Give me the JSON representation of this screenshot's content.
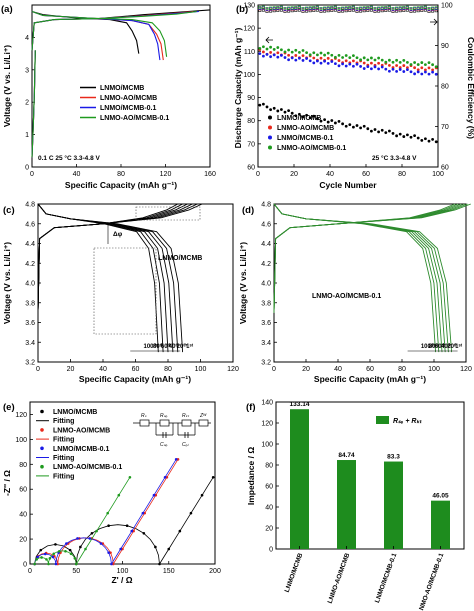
{
  "figure": {
    "panels": {
      "a": {
        "letter": "(a)",
        "xlabel": "Specific Capacity (mAh g⁻¹)",
        "ylabel": "Voltage (V vs. Li/Li⁺)",
        "xticks": [
          "0",
          "40",
          "80",
          "120",
          "160"
        ],
        "yticks": [
          "0",
          "1",
          "2",
          "3",
          "4"
        ],
        "condition": "0.1 C  25 °C  3.3-4.8 V",
        "legend": [
          "LNMO/MCMB",
          "LNMO-AO/MCMB",
          "LNMO/MCMB-0.1",
          "LNMO-AO/MCMB-0.1"
        ]
      },
      "b": {
        "letter": "(b)",
        "xlabel": "Cycle Number",
        "ylabel": "Discharge Capacity (mAh g⁻¹)",
        "ylabel2": "Coulombic Efficiency (%)",
        "xticks": [
          "0",
          "20",
          "40",
          "60",
          "80",
          "100"
        ],
        "yticks": [
          "60",
          "70",
          "80",
          "90",
          "100",
          "110",
          "120",
          "130"
        ],
        "yticks2": [
          "60",
          "70",
          "80",
          "90",
          "100"
        ],
        "condition": "25 °C  3.3-4.8 V",
        "legend": [
          "LNMO/MCMB",
          "LNMO-AO/MCMB",
          "LNMO/MCMB-0.1",
          "LNMO-AO/MCMB-0.1"
        ]
      },
      "c": {
        "letter": "(c)",
        "xlabel": "Specific Capacity (mAh g⁻¹)",
        "ylabel": "Voltage (V vs. Li/Li⁺)",
        "xticks": [
          "0",
          "20",
          "40",
          "60",
          "80",
          "100",
          "120"
        ],
        "yticks": [
          "3.2",
          "3.4",
          "3.6",
          "3.8",
          "4.0",
          "4.2",
          "4.4",
          "4.6",
          "4.8"
        ],
        "title": "LNMO/MCMB",
        "delta": "Δφ",
        "cycle_labels": [
          "100ᵗʰ",
          "80ᵗʰ",
          "60ᵗʰ",
          "40ᵗʰ",
          "20ᵗʰ",
          "1ˢᵗ"
        ]
      },
      "d": {
        "letter": "(d)",
        "xlabel": "Specific Capacity (mAh g⁻¹)",
        "ylabel": "Voltage (V vs. Li/Li⁺)",
        "xticks": [
          "0",
          "20",
          "40",
          "60",
          "80",
          "100",
          "120"
        ],
        "yticks": [
          "3.2",
          "3.4",
          "3.6",
          "3.8",
          "4.0",
          "4.2",
          "4.4",
          "4.6",
          "4.8"
        ],
        "title": "LNMO-AO/MCMB-0.1",
        "cycle_labels": [
          "100ᵗʰ",
          "80ᵗʰ",
          "60ᵗʰ",
          "40ᵗʰ",
          "20ᵗʰ",
          "1ˢᵗ"
        ]
      },
      "e": {
        "letter": "(e)",
        "xlabel": "Z' / Ω",
        "ylabel": "-Z'' / Ω",
        "xticks": [
          "0",
          "50",
          "100",
          "150",
          "200"
        ],
        "yticks": [
          "0",
          "20",
          "40",
          "60",
          "80",
          "100",
          "120"
        ],
        "legend": [
          "LNMO/MCMB",
          "Fitting",
          "LNMO-AO/MCMB",
          "Fitting",
          "LNMO/MCMB-0.1",
          "Fitting",
          "LNMO-AO/MCMB-0.1",
          "Fitting"
        ],
        "circuit": {
          "rs": "Rₛ",
          "rsf": "Rₛₑ",
          "rct": "Rₖₜ",
          "zw": "Zᵂ",
          "csf": "Cₛₑ",
          "cdl": "Cₑₗ"
        }
      },
      "f": {
        "letter": "(f)",
        "ylabel": "Impedance / Ω",
        "yticks": [
          "0",
          "20",
          "40",
          "60",
          "80",
          "100",
          "120",
          "140"
        ],
        "legend": "Rₛₑ + Rₖₜ"
      }
    }
  },
  "chart_data": [
    {
      "panel": "a",
      "type": "line",
      "xlim": [
        0,
        160
      ],
      "ylim": [
        0,
        5
      ],
      "series": [
        {
          "name": "LNMO/MCMB",
          "color": "#000000",
          "charge": [
            [
              0,
              3.6
            ],
            [
              2,
              4.45
            ],
            [
              20,
              4.55
            ],
            [
              60,
              4.58
            ],
            [
              100,
              4.7
            ],
            [
              140,
              4.8
            ],
            [
              160,
              4.85
            ]
          ],
          "discharge": [
            [
              0,
              4.8
            ],
            [
              10,
              4.7
            ],
            [
              40,
              4.6
            ],
            [
              70,
              4.55
            ],
            [
              85,
              4.45
            ],
            [
              90,
              4.2
            ],
            [
              94,
              3.9
            ],
            [
              96,
              3.5
            ]
          ]
        },
        {
          "name": "LNMO-AO/MCMB",
          "color": "#e8291c",
          "charge": [
            [
              0,
              3.6
            ],
            [
              2,
              4.45
            ],
            [
              20,
              4.55
            ],
            [
              60,
              4.58
            ],
            [
              100,
              4.67
            ],
            [
              130,
              4.75
            ],
            [
              145,
              4.8
            ]
          ],
          "discharge": [
            [
              0,
              4.8
            ],
            [
              10,
              4.68
            ],
            [
              50,
              4.6
            ],
            [
              90,
              4.52
            ],
            [
              105,
              4.4
            ],
            [
              112,
              4.1
            ],
            [
              116,
              3.8
            ],
            [
              118,
              3.3
            ]
          ]
        },
        {
          "name": "LNMO/MCMB-0.1",
          "color": "#1a1ae6",
          "charge": [
            [
              0,
              3.6
            ],
            [
              2,
              4.45
            ],
            [
              20,
              4.55
            ],
            [
              60,
              4.58
            ],
            [
              100,
              4.66
            ],
            [
              130,
              4.74
            ],
            [
              150,
              4.8
            ]
          ],
          "discharge": [
            [
              0,
              4.8
            ],
            [
              10,
              4.68
            ],
            [
              50,
              4.6
            ],
            [
              90,
              4.52
            ],
            [
              105,
              4.4
            ],
            [
              110,
              4.1
            ],
            [
              113,
              3.8
            ],
            [
              115,
              3.3
            ]
          ]
        },
        {
          "name": "LNMO-AO/MCMB-0.1",
          "color": "#1e9a1e",
          "charge": [
            [
              0,
              3.6
            ],
            [
              2,
              4.45
            ],
            [
              20,
              4.55
            ],
            [
              60,
              4.58
            ],
            [
              100,
              4.65
            ],
            [
              130,
              4.72
            ],
            [
              148,
              4.8
            ]
          ],
          "discharge": [
            [
              0,
              4.8
            ],
            [
              10,
              4.68
            ],
            [
              50,
              4.6
            ],
            [
              90,
              4.55
            ],
            [
              108,
              4.45
            ],
            [
              115,
              4.2
            ],
            [
              119,
              3.9
            ],
            [
              121,
              3.4
            ]
          ]
        }
      ]
    },
    {
      "panel": "b",
      "type": "scatter",
      "xlim": [
        0,
        100
      ],
      "ylim": [
        60,
        130
      ],
      "ylim2": [
        60,
        100
      ],
      "series": [
        {
          "name": "LNMO/MCMB",
          "color": "#000000",
          "start": 87,
          "end": 71,
          "ce": 98.6
        },
        {
          "name": "LNMO-AO/MCMB",
          "color": "#e8291c",
          "start": 110,
          "end": 102,
          "ce": 99.0
        },
        {
          "name": "LNMO/MCMB-0.1",
          "color": "#1a1ae6",
          "start": 109,
          "end": 100,
          "ce": 99.1
        },
        {
          "name": "LNMO-AO/MCMB-0.1",
          "color": "#1e9a1e",
          "start": 112,
          "end": 104,
          "ce": 99.3
        }
      ]
    },
    {
      "panel": "c",
      "type": "line",
      "xlim": [
        0,
        120
      ],
      "ylim": [
        3.2,
        4.8
      ],
      "cycles": [
        1,
        20,
        40,
        60,
        80,
        100
      ],
      "discharge_end_capacity": [
        89,
        86,
        83,
        80,
        77,
        74
      ]
    },
    {
      "panel": "d",
      "type": "line",
      "xlim": [
        0,
        120
      ],
      "ylim": [
        3.2,
        4.8
      ],
      "cycles": [
        1,
        20,
        40,
        60,
        80,
        100
      ],
      "discharge_end_capacity": [
        111,
        109,
        107,
        105,
        103,
        101
      ]
    },
    {
      "panel": "e",
      "type": "scatter",
      "xlim": [
        0,
        200
      ],
      "ylim": [
        0,
        130
      ],
      "series": [
        {
          "name": "LNMO/MCMB",
          "color": "#000000",
          "rs": 5,
          "r1": 50,
          "r2": 140,
          "wslope": 1.2,
          "wend": 200
        },
        {
          "name": "LNMO-AO/MCMB",
          "color": "#e8291c",
          "rs": 5,
          "r1": 30,
          "r2": 90,
          "wslope": 1.2,
          "wend": 160
        },
        {
          "name": "LNMO/MCMB-0.1",
          "color": "#1a1ae6",
          "rs": 5,
          "r1": 28,
          "r2": 88,
          "wslope": 1.2,
          "wend": 158
        },
        {
          "name": "LNMO-AO/MCMB-0.1",
          "color": "#1e9a1e",
          "rs": 5,
          "r1": 20,
          "r2": 50,
          "wslope": 1.2,
          "wend": 110
        }
      ]
    },
    {
      "panel": "f",
      "type": "bar",
      "categories": [
        "LNMO/MCMB",
        "LNMO-AO/MCMB",
        "LNMO/MCMB-0.1",
        "LNMO-AO/MCMB-0.1"
      ],
      "values": [
        133.14,
        84.74,
        83.3,
        46.05
      ],
      "value_labels": [
        "133.14",
        "84.74",
        "83.3",
        "46.05"
      ],
      "ylim": [
        0,
        140
      ],
      "color": "#1e8c1e"
    }
  ]
}
